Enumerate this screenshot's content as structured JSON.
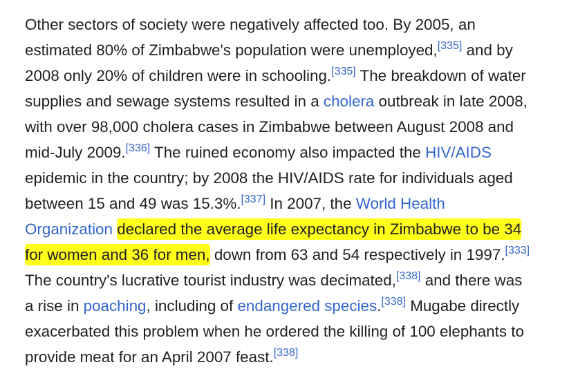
{
  "paragraph": {
    "lines": [
      [
        {
          "t": "text",
          "v": "Other sectors of society were negatively affected too. By 2005, an"
        }
      ],
      [
        {
          "t": "text",
          "v": "estimated 80% of Zimbabwe's population were unemployed,"
        },
        {
          "t": "ref",
          "v": "[335]"
        },
        {
          "t": "text",
          "v": " and by"
        }
      ],
      [
        {
          "t": "text",
          "v": "2008 only 20% of children were in schooling."
        },
        {
          "t": "ref",
          "v": "[335]"
        },
        {
          "t": "text",
          "v": " The breakdown of water"
        }
      ],
      [
        {
          "t": "text",
          "v": "supplies and sewage systems resulted in a "
        },
        {
          "t": "link",
          "v": "cholera"
        },
        {
          "t": "text",
          "v": " outbreak in late 2008,"
        }
      ],
      [
        {
          "t": "text",
          "v": "with over 98,000 cholera cases in Zimbabwe between August 2008 and"
        }
      ],
      [
        {
          "t": "text",
          "v": "mid-July 2009."
        },
        {
          "t": "ref",
          "v": "[336]"
        },
        {
          "t": "text",
          "v": " The ruined economy also impacted the "
        },
        {
          "t": "link",
          "v": "HIV/AIDS"
        }
      ],
      [
        {
          "t": "text",
          "v": "epidemic in the country; by 2008 the HIV/AIDS rate for individuals aged"
        }
      ],
      [
        {
          "t": "text",
          "v": "between 15 and 49 was 15.3%."
        },
        {
          "t": "ref",
          "v": "[337]"
        },
        {
          "t": "text",
          "v": " In 2007, the "
        },
        {
          "t": "link",
          "v": "World Health"
        }
      ],
      [
        {
          "t": "link",
          "v": "Organization"
        },
        {
          "t": "text",
          "v": " "
        },
        {
          "t": "hl",
          "v": "declared the average life expectancy in Zimbabwe to be 34"
        }
      ],
      [
        {
          "t": "hl",
          "v": "for women and 36 for men,"
        },
        {
          "t": "text",
          "v": " down from 63 and 54 respectively in 1997."
        },
        {
          "t": "ref",
          "v": "[333]"
        }
      ],
      [
        {
          "t": "text",
          "v": "The country's lucrative tourist industry was decimated,"
        },
        {
          "t": "ref",
          "v": "[338]"
        },
        {
          "t": "text",
          "v": " and there was"
        }
      ],
      [
        {
          "t": "text",
          "v": "a rise in "
        },
        {
          "t": "link",
          "v": "poaching"
        },
        {
          "t": "text",
          "v": ", including of "
        },
        {
          "t": "link",
          "v": "endangered species"
        },
        {
          "t": "text",
          "v": "."
        },
        {
          "t": "ref",
          "v": "[338]"
        },
        {
          "t": "text",
          "v": " Mugabe directly"
        }
      ],
      [
        {
          "t": "text",
          "v": "exacerbated this problem when he ordered the killing of 100 elephants to"
        }
      ],
      [
        {
          "t": "text",
          "v": "provide meat for an April 2007 feast."
        },
        {
          "t": "ref",
          "v": "[338]"
        }
      ]
    ]
  },
  "colors": {
    "text": "#202122",
    "link": "#3366cc",
    "highlight": "#ffff1a",
    "background": "#ffffff"
  }
}
